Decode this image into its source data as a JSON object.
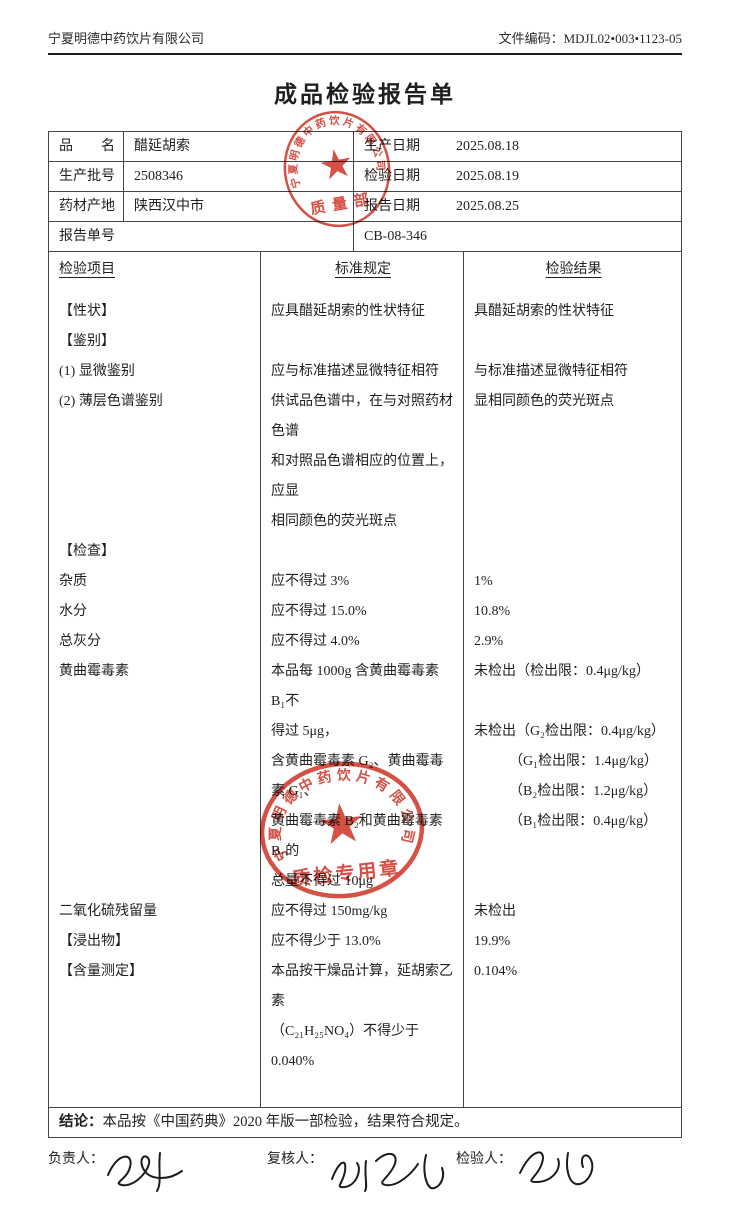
{
  "header": {
    "company": "宁夏明德中药饮片有限公司",
    "doc_code_label": "文件编码：",
    "doc_code": "MDJL02•003•1123-05"
  },
  "title": "成品检验报告单",
  "info": {
    "product_label": "品　　名",
    "product": "醋延胡索",
    "prod_date_label": "生产日期",
    "prod_date": "2025.08.18",
    "batch_label": "生产批号",
    "batch": "2508346",
    "test_date_label": "检验日期",
    "test_date": "2025.08.19",
    "origin_label": "药材产地",
    "origin": "陕西汉中市",
    "report_date_label": "报告日期",
    "report_date": "2025.08.25",
    "report_no_label": "报告单号",
    "report_no": "CB-08-346"
  },
  "table": {
    "col_item": "检验项目",
    "col_standard": "标准规定",
    "col_result": "检验结果",
    "rows": [
      {
        "item": "【性状】",
        "std": "应具醋延胡索的性状特征",
        "res": "具醋延胡索的性状特征"
      },
      {
        "item": "【鉴别】",
        "std": "",
        "res": ""
      },
      {
        "item": "(1) 显微鉴别",
        "std": "应与标准描述显微特征相符",
        "res": "与标准描述显微特征相符"
      },
      {
        "item": "(2) 薄层色谱鉴别",
        "std": "供试品色谱中，在与对照药材色谱\n和对照品色谱相应的位置上，应显\n相同颜色的荧光斑点",
        "res": "显相同颜色的荧光斑点"
      },
      {
        "item": "【检查】",
        "std": "",
        "res": ""
      },
      {
        "item": "杂质",
        "std": "应不得过 3%",
        "res": "1%"
      },
      {
        "item": "水分",
        "std": "应不得过 15.0%",
        "res": "10.8%"
      },
      {
        "item": "总灰分",
        "std": "应不得过 4.0%",
        "res": "2.9%"
      },
      {
        "item": "黄曲霉毒素",
        "std": "本品每 1000g 含黄曲霉毒素 B₁不\n得过 5μg，\n含黄曲霉毒素 G₂、黄曲霉毒素 G₁、\n黄曲霉毒素 B₂和黄曲霉毒素 B₁的\n总量不得过 10μg",
        "res": "未检出（检出限：0.4μg/kg）\n\n未检出（G₂检出限：0.4μg/kg）\n　　　（G₁检出限：1.4μg/kg）\n　　　（B₂检出限：1.2μg/kg）\n　　　（B₁检出限：0.4μg/kg）"
      },
      {
        "item": "二氧化硫残留量",
        "std": "应不得过 150mg/kg",
        "res": "未检出"
      },
      {
        "item": "【浸出物】",
        "std": "应不得少于 13.0%",
        "res": "19.9%"
      },
      {
        "item": "【含量测定】",
        "std": "本品按干燥品计算，延胡索乙素\n（C₂₁H₂₅NO₄）不得少于 0.040%",
        "res": "0.104%"
      },
      {
        "item": "",
        "std": "",
        "res": ""
      }
    ]
  },
  "conclusion": {
    "label": "结论：",
    "text": "本品按《中国药典》2020 年版一部检验，结果符合规定。"
  },
  "signatures": {
    "responsible_label": "负责人：",
    "reviewer_label": "复核人：",
    "inspector_label": "检验人："
  },
  "stamps": {
    "ink_color": "#cf372b",
    "quality_dept": {
      "company": "宁夏明德中药饮片有限公司",
      "dept": "质量部"
    },
    "qc_seal": {
      "company": "宁夏明德中药饮片有限公司",
      "label": "质检专用章"
    }
  }
}
